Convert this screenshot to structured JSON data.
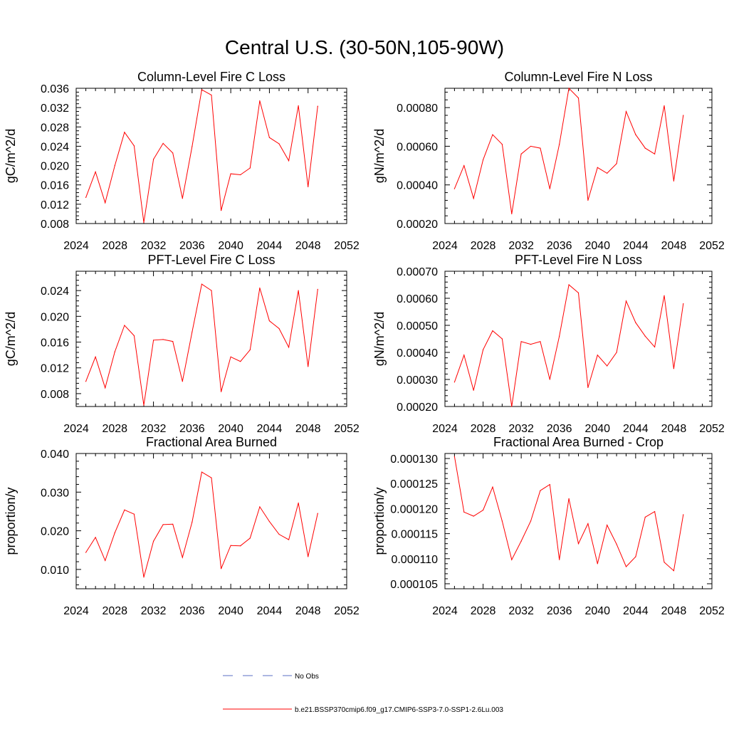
{
  "title": "Central U.S. (30-50N,105-90W)",
  "colors": {
    "series": "#ff0000",
    "obs": "#5b6fc6",
    "axis": "#000000"
  },
  "legend": {
    "obs_label": "No Obs",
    "model_label": "b.e21.BSSP370cmip6.f09_g17.CMIP6-SSP3-7.0-SSP1-2.6Lu.003"
  },
  "chart_data": [
    {
      "type": "line",
      "title": "Column-Level Fire C Loss",
      "ylabel": "gC/m^2/d",
      "xlim": [
        2024,
        2052
      ],
      "ylim": [
        0.008,
        0.036
      ],
      "xticks": [
        "2024",
        "2028",
        "2032",
        "2036",
        "2040",
        "2044",
        "2048",
        "2052"
      ],
      "yticks": [
        "0.008",
        "0.012",
        "0.016",
        "0.020",
        "0.024",
        "0.028",
        "0.032",
        "0.036"
      ],
      "x": [
        2025,
        2026,
        2027,
        2028,
        2029,
        2030,
        2031,
        2032,
        2033,
        2034,
        2035,
        2036,
        2037,
        2038,
        2039,
        2040,
        2041,
        2042,
        2043,
        2044,
        2045,
        2046,
        2047,
        2048,
        2049
      ],
      "values": [
        0.0134,
        0.0187,
        0.0123,
        0.02,
        0.0269,
        0.0241,
        0.0082,
        0.0213,
        0.0246,
        0.0226,
        0.0132,
        0.024,
        0.0357,
        0.0346,
        0.0107,
        0.0183,
        0.0181,
        0.0195,
        0.0334,
        0.0258,
        0.0245,
        0.021,
        0.0324,
        0.0156,
        0.0323
      ]
    },
    {
      "type": "line",
      "title": "Column-Level Fire N Loss",
      "ylabel": "gN/m^2/d",
      "xlim": [
        2024,
        2052
      ],
      "ylim": [
        0.0002,
        0.0009
      ],
      "xticks": [
        "2024",
        "2028",
        "2032",
        "2036",
        "2040",
        "2044",
        "2048",
        "2052"
      ],
      "yticks": [
        "0.00020",
        "0.00040",
        "0.00060",
        "0.00080"
      ],
      "x": [
        2025,
        2026,
        2027,
        2028,
        2029,
        2030,
        2031,
        2032,
        2033,
        2034,
        2035,
        2036,
        2037,
        2038,
        2039,
        2040,
        2041,
        2042,
        2043,
        2044,
        2045,
        2046,
        2047,
        2048,
        2049
      ],
      "values": [
        0.00038,
        0.0005,
        0.00033,
        0.00053,
        0.00066,
        0.00061,
        0.00025,
        0.00056,
        0.0006,
        0.00059,
        0.00038,
        0.00061,
        0.0009,
        0.00085,
        0.00032,
        0.00049,
        0.00046,
        0.00051,
        0.00078,
        0.00066,
        0.00059,
        0.00056,
        0.00081,
        0.00042,
        0.00076
      ]
    },
    {
      "type": "line",
      "title": "PFT-Level Fire C Loss",
      "ylabel": "gC/m^2/d",
      "xlim": [
        2024,
        2052
      ],
      "ylim": [
        0.006,
        0.027
      ],
      "xticks": [
        "2024",
        "2028",
        "2032",
        "2036",
        "2040",
        "2044",
        "2048",
        "2052"
      ],
      "yticks": [
        "0.008",
        "0.012",
        "0.016",
        "0.020",
        "0.024"
      ],
      "x": [
        2025,
        2026,
        2027,
        2028,
        2029,
        2030,
        2031,
        2032,
        2033,
        2034,
        2035,
        2036,
        2037,
        2038,
        2039,
        2040,
        2041,
        2042,
        2043,
        2044,
        2045,
        2046,
        2047,
        2048,
        2049
      ],
      "values": [
        0.0099,
        0.0137,
        0.0089,
        0.0145,
        0.0186,
        0.017,
        0.0062,
        0.0163,
        0.0164,
        0.0161,
        0.0099,
        0.0176,
        0.025,
        0.024,
        0.0083,
        0.0137,
        0.013,
        0.0148,
        0.0244,
        0.0193,
        0.0181,
        0.0152,
        0.024,
        0.0122,
        0.0242
      ]
    },
    {
      "type": "line",
      "title": "PFT-Level Fire N Loss",
      "ylabel": "gN/m^2/d",
      "xlim": [
        2024,
        2052
      ],
      "ylim": [
        0.0002,
        0.0007
      ],
      "xticks": [
        "2024",
        "2028",
        "2032",
        "2036",
        "2040",
        "2044",
        "2048",
        "2052"
      ],
      "yticks": [
        "0.00020",
        "0.00030",
        "0.00040",
        "0.00050",
        "0.00060",
        "0.00070"
      ],
      "x": [
        2025,
        2026,
        2027,
        2028,
        2029,
        2030,
        2031,
        2032,
        2033,
        2034,
        2035,
        2036,
        2037,
        2038,
        2039,
        2040,
        2041,
        2042,
        2043,
        2044,
        2045,
        2046,
        2047,
        2048,
        2049
      ],
      "values": [
        0.00029,
        0.00039,
        0.00026,
        0.00041,
        0.00048,
        0.00045,
        0.0002,
        0.00044,
        0.00043,
        0.00044,
        0.0003,
        0.00046,
        0.00065,
        0.00062,
        0.00027,
        0.00039,
        0.00035,
        0.0004,
        0.00059,
        0.00051,
        0.00046,
        0.00042,
        0.00061,
        0.00034,
        0.00058
      ]
    },
    {
      "type": "line",
      "title": "Fractional Area Burned",
      "ylabel": "proportion/y",
      "xlim": [
        2024,
        2052
      ],
      "ylim": [
        0.005,
        0.04
      ],
      "xticks": [
        "2024",
        "2028",
        "2032",
        "2036",
        "2040",
        "2044",
        "2048",
        "2052"
      ],
      "yticks": [
        "0.010",
        "0.020",
        "0.030",
        "0.040"
      ],
      "x": [
        2025,
        2026,
        2027,
        2028,
        2029,
        2030,
        2031,
        2032,
        2033,
        2034,
        2035,
        2036,
        2037,
        2038,
        2039,
        2040,
        2041,
        2042,
        2043,
        2044,
        2045,
        2046,
        2047,
        2048,
        2049
      ],
      "values": [
        0.0144,
        0.0183,
        0.0123,
        0.0195,
        0.0254,
        0.0243,
        0.008,
        0.0173,
        0.0216,
        0.0217,
        0.0131,
        0.0223,
        0.0352,
        0.0337,
        0.0102,
        0.0162,
        0.0161,
        0.0181,
        0.0262,
        0.0224,
        0.0191,
        0.0177,
        0.0272,
        0.0133,
        0.0245
      ]
    },
    {
      "type": "line",
      "title": "Fractional Area Burned - Crop",
      "ylabel": "proportion/y",
      "xlim": [
        2024,
        2052
      ],
      "ylim": [
        0.000104,
        0.000131
      ],
      "xticks": [
        "2024",
        "2028",
        "2032",
        "2036",
        "2040",
        "2044",
        "2048",
        "2052"
      ],
      "yticks": [
        "0.000105",
        "0.000110",
        "0.000115",
        "0.000120",
        "0.000125",
        "0.000130"
      ],
      "x": [
        2025,
        2026,
        2027,
        2028,
        2029,
        2030,
        2031,
        2032,
        2033,
        2034,
        2035,
        2036,
        2037,
        2038,
        2039,
        2040,
        2041,
        2042,
        2043,
        2044,
        2045,
        2046,
        2047,
        2048,
        2049
      ],
      "values": [
        0.0001304,
        0.0001193,
        0.0001185,
        0.0001197,
        0.0001243,
        0.0001175,
        0.0001098,
        0.0001135,
        0.0001175,
        0.0001236,
        0.0001248,
        0.0001098,
        0.000122,
        0.000113,
        0.000117,
        0.000109,
        0.0001167,
        0.0001129,
        0.0001084,
        0.0001104,
        0.0001183,
        0.0001194,
        0.0001093,
        0.0001076,
        0.0001188
      ]
    }
  ]
}
